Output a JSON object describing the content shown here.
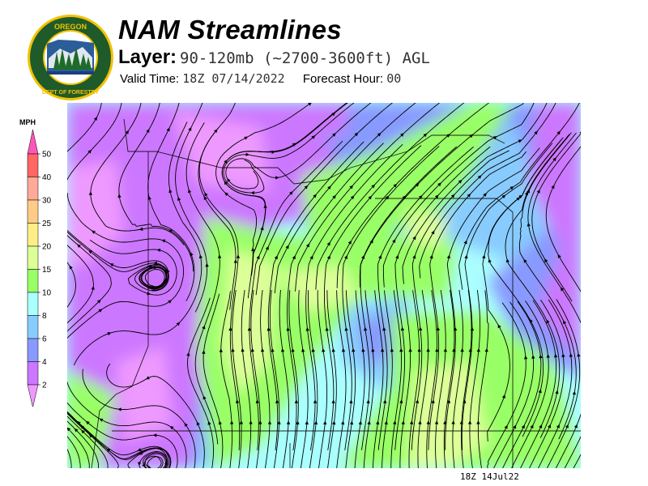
{
  "header": {
    "title": "NAM Streamlines",
    "layer_label": "Layer:",
    "layer_value": "90-120mb (~2700-3600ft) AGL",
    "valid_label": "Valid Time:",
    "valid_value": "18Z 07/14/2022",
    "forecast_label": "Forecast Hour:",
    "forecast_value": "00"
  },
  "logo": {
    "text_top": "OREGON",
    "text_bottom": "DEPARTMENT OF FORESTRY",
    "colors": {
      "ring": "#f2c200",
      "field": "#1f5a2a",
      "sky": "#2a5d9a"
    }
  },
  "legend": {
    "unit": "MPH",
    "ticks": [
      "50",
      "40",
      "30",
      "25",
      "20",
      "15",
      "10",
      "8",
      "6",
      "4",
      "2"
    ],
    "colors": {
      "above_50": "#ff55bb",
      "40-50": "#ff6666",
      "30-40": "#ffaa99",
      "25-30": "#ffcc88",
      "20-25": "#ffee88",
      "15-20": "#ddff99",
      "10-15": "#99ff66",
      "8-10": "#aaffff",
      "6-8": "#88ccff",
      "4-6": "#8899ff",
      "2-4": "#cc77ff",
      "below_2": "#ee99ff"
    }
  },
  "map": {
    "stamp": "18Z 14Jul22",
    "streamline_color": "#000000"
  }
}
